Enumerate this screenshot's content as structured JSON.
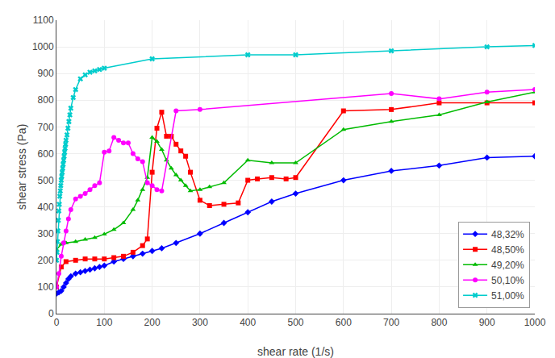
{
  "chart_data": {
    "type": "line",
    "x_label": "shear rate (1/s)",
    "y_label": "shear stress (Pa)",
    "xlim": [
      0,
      1000
    ],
    "ylim": [
      0,
      1100
    ],
    "xticks": [
      0,
      100,
      200,
      300,
      400,
      500,
      600,
      700,
      800,
      900,
      1000
    ],
    "yticks": [
      0,
      100,
      200,
      300,
      400,
      500,
      600,
      700,
      800,
      900,
      1000,
      1100
    ],
    "grid": true,
    "legend": "lower right",
    "series": [
      {
        "name": "48,32%",
        "color": "#0000FF",
        "marker": "diamond",
        "x": [
          0,
          5,
          10,
          15,
          20,
          25,
          30,
          40,
          50,
          60,
          70,
          80,
          90,
          100,
          120,
          140,
          160,
          180,
          200,
          220,
          250,
          300,
          350,
          400,
          450,
          500,
          600,
          700,
          800,
          900,
          1000
        ],
        "values": [
          75,
          80,
          85,
          100,
          115,
          130,
          140,
          150,
          155,
          160,
          165,
          170,
          175,
          180,
          195,
          205,
          215,
          225,
          235,
          245,
          265,
          300,
          340,
          380,
          420,
          450,
          500,
          535,
          555,
          585,
          590
        ]
      },
      {
        "name": "48,50%",
        "color": "#FF0000",
        "marker": "square",
        "x": [
          0,
          10,
          20,
          40,
          60,
          80,
          100,
          120,
          140,
          160,
          180,
          190,
          200,
          210,
          220,
          230,
          240,
          250,
          260,
          270,
          280,
          300,
          320,
          350,
          380,
          400,
          420,
          450,
          480,
          500,
          600,
          700,
          800,
          900,
          1000
        ],
        "values": [
          100,
          175,
          195,
          200,
          205,
          205,
          205,
          210,
          215,
          230,
          255,
          280,
          530,
          695,
          755,
          665,
          665,
          635,
          610,
          590,
          530,
          425,
          405,
          410,
          415,
          500,
          505,
          510,
          505,
          510,
          760,
          765,
          790,
          790,
          790
        ]
      },
      {
        "name": "49,20%",
        "color": "#00BB00",
        "marker": "triangle-up",
        "x": [
          0,
          10,
          20,
          40,
          60,
          80,
          100,
          120,
          140,
          160,
          170,
          180,
          190,
          200,
          210,
          220,
          230,
          240,
          250,
          260,
          270,
          280,
          300,
          320,
          350,
          400,
          450,
          500,
          600,
          700,
          800,
          900,
          1000
        ],
        "values": [
          240,
          260,
          265,
          270,
          278,
          285,
          298,
          315,
          340,
          390,
          425,
          465,
          510,
          660,
          645,
          615,
          575,
          545,
          520,
          500,
          480,
          460,
          465,
          475,
          490,
          575,
          565,
          565,
          690,
          720,
          745,
          793,
          830
        ]
      },
      {
        "name": "50,10%",
        "color": "#FF00FF",
        "marker": "circle",
        "x": [
          0,
          5,
          10,
          15,
          20,
          25,
          30,
          40,
          50,
          60,
          70,
          80,
          90,
          100,
          110,
          120,
          130,
          140,
          150,
          160,
          170,
          180,
          190,
          200,
          210,
          220,
          250,
          300,
          700,
          800,
          900,
          1000
        ],
        "values": [
          100,
          150,
          215,
          265,
          310,
          355,
          390,
          430,
          440,
          450,
          465,
          480,
          490,
          605,
          610,
          660,
          650,
          640,
          640,
          600,
          580,
          570,
          490,
          480,
          465,
          460,
          760,
          765,
          825,
          805,
          830,
          840
        ]
      },
      {
        "name": "51,00%",
        "color": "#00CCCC",
        "marker": "x",
        "x": [
          0,
          1,
          2,
          3,
          4,
          5,
          6,
          7,
          8,
          9,
          10,
          11,
          12,
          13,
          14,
          15,
          16,
          17,
          18,
          19,
          20,
          22,
          24,
          26,
          28,
          30,
          35,
          40,
          50,
          60,
          70,
          80,
          90,
          100,
          200,
          400,
          500,
          700,
          900,
          1000
        ],
        "values": [
          200,
          230,
          270,
          310,
          350,
          385,
          410,
          440,
          460,
          480,
          500,
          515,
          530,
          545,
          560,
          575,
          590,
          605,
          620,
          635,
          650,
          670,
          695,
          720,
          745,
          770,
          810,
          840,
          880,
          895,
          905,
          910,
          915,
          920,
          955,
          970,
          970,
          985,
          1000,
          1005
        ]
      }
    ]
  }
}
